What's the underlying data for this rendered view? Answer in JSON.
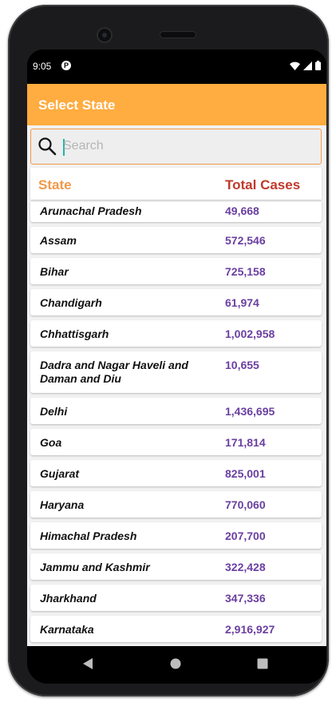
{
  "status_bar": {
    "time": "9:05",
    "app_icon": "P",
    "icons": [
      "wifi-icon",
      "signal-icon",
      "battery-icon"
    ]
  },
  "app_bar": {
    "title": "Select State",
    "color": "#ffac40"
  },
  "search": {
    "placeholder": "Search",
    "value": ""
  },
  "table": {
    "header_state": "State",
    "header_total": "Total Cases",
    "header_state_color": "#f2994a",
    "header_total_color": "#c0392b",
    "value_color": "#6a3fa0",
    "rows": [
      {
        "state": "Arunachal Pradesh",
        "cases": "49,668"
      },
      {
        "state": "Assam",
        "cases": "572,546"
      },
      {
        "state": "Bihar",
        "cases": "725,158"
      },
      {
        "state": "Chandigarh",
        "cases": "61,974"
      },
      {
        "state": "Chhattisgarh",
        "cases": "1,002,958"
      },
      {
        "state": "Dadra and Nagar Haveli and Daman and Diu",
        "cases": "10,655"
      },
      {
        "state": "Delhi",
        "cases": "1,436,695"
      },
      {
        "state": "Goa",
        "cases": "171,814"
      },
      {
        "state": "Gujarat",
        "cases": "825,001"
      },
      {
        "state": "Haryana",
        "cases": "770,060"
      },
      {
        "state": "Himachal Pradesh",
        "cases": "207,700"
      },
      {
        "state": "Jammu and Kashmir",
        "cases": "322,428"
      },
      {
        "state": "Jharkhand",
        "cases": "347,336"
      },
      {
        "state": "Karnataka",
        "cases": "2,916,927"
      }
    ]
  },
  "nav_bar": {
    "buttons": [
      "back-icon",
      "home-icon",
      "recents-icon"
    ]
  }
}
